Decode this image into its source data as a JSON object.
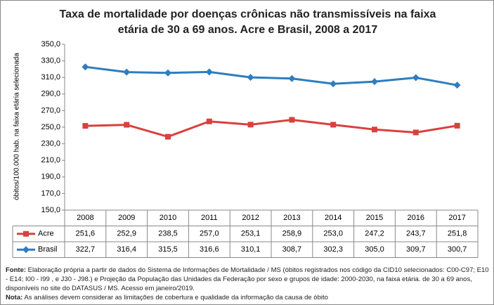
{
  "chart_data": {
    "type": "line",
    "title": "Taxa de mortalidade por doenças crônicas não transmissíveis na faixa etária de 30 a  69 anos. Acre e Brasil, 2008 a 2017",
    "y_label": "óbitos/100.000 hab. na faixa etária selecionada",
    "categories": [
      "2008",
      "2009",
      "2010",
      "2011",
      "2012",
      "2013",
      "2014",
      "2015",
      "2016",
      "2017"
    ],
    "series": [
      {
        "name": "Acre",
        "color": "#d9403f",
        "marker": "square",
        "values": [
          251.6,
          252.9,
          238.5,
          257.0,
          253.1,
          258.9,
          253.0,
          247.2,
          243.7,
          251.8
        ],
        "value_labels": [
          "251,6",
          "252,9",
          "238,5",
          "257,0",
          "253,1",
          "258,9",
          "253,0",
          "247,2",
          "243,7",
          "251,8"
        ]
      },
      {
        "name": "Brasil",
        "color": "#2e7dc0",
        "marker": "diamond",
        "values": [
          322.7,
          316.4,
          315.5,
          316.6,
          310.1,
          308.7,
          302.3,
          305.0,
          309.7,
          300.7
        ],
        "value_labels": [
          "322,7",
          "316,4",
          "315,5",
          "316,6",
          "310,1",
          "308,7",
          "302,3",
          "305,0",
          "309,7",
          "300,7"
        ]
      }
    ],
    "ylim": [
      150,
      350
    ],
    "yticks": [
      {
        "value": 150,
        "label": "150,0"
      },
      {
        "value": 170,
        "label": "170,0"
      },
      {
        "value": 190,
        "label": "190,0"
      },
      {
        "value": 210,
        "label": "210,0"
      },
      {
        "value": 230,
        "label": "230,0"
      },
      {
        "value": 250,
        "label": "250,0"
      },
      {
        "value": 270,
        "label": "270,0"
      },
      {
        "value": 290,
        "label": "290,0"
      },
      {
        "value": 310,
        "label": "310,0"
      },
      {
        "value": 330,
        "label": "330,0"
      },
      {
        "value": 350,
        "label": "350,0"
      }
    ],
    "grid": false,
    "source_label": "Fonte:",
    "source_text": "Elaboração própria a partir de dados do Sistema de Informações de Mortalidade / MS (óbitos registrados nos código da CID10 selecionados: C00-C97; E10 - E14; I00 - I99 , e J30 - J98.) e Projeção da População das Unidades da Federação por sexo e grupos de idade: 2000-2030, na faixa etária. de 30 a 69 anos, disponíveis no site do DATASUS / MS.  Acesso em janeiro/2019.",
    "note_label": "Nota:",
    "note_text": "As análises devem considerar as limitações de cobertura e qualidade da informação da causa de óbito"
  }
}
